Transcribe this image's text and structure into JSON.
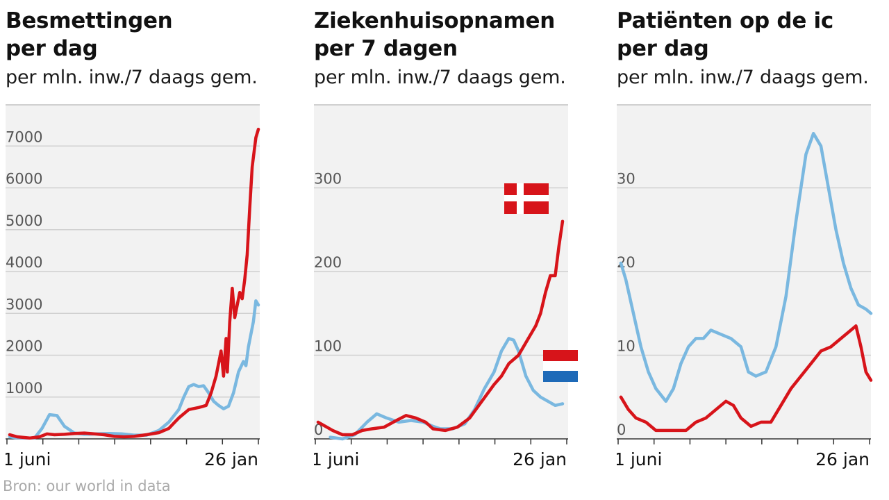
{
  "source": "Bron: our world in data",
  "colors": {
    "denmark": "#d7141a",
    "netherlands": "#7ab8e0",
    "plot_bg": "#f2f2f2",
    "grid": "#d0d0d0",
    "flag_blue": "#1e6ab8"
  },
  "chart_data": [
    {
      "type": "line",
      "title_line1": "Besmettingen",
      "title_line2": "per dag",
      "subtitle": "per mln. inw./7 daags gem.",
      "xlabel": "",
      "ylabel": "",
      "x_tick_labels": [
        "1 juni",
        "26 jan"
      ],
      "x_tick_count": 8,
      "ylim": [
        0,
        8000
      ],
      "y_ticks": [
        1000,
        2000,
        3000,
        4000,
        5000,
        6000,
        7000
      ],
      "grid": true,
      "series": [
        {
          "color_key": "netherlands",
          "points": [
            [
              0,
              50
            ],
            [
              0.02,
              30
            ],
            [
              0.05,
              20
            ],
            [
              0.1,
              20
            ],
            [
              0.13,
              250
            ],
            [
              0.16,
              580
            ],
            [
              0.19,
              560
            ],
            [
              0.22,
              300
            ],
            [
              0.26,
              140
            ],
            [
              0.3,
              110
            ],
            [
              0.35,
              120
            ],
            [
              0.4,
              130
            ],
            [
              0.45,
              120
            ],
            [
              0.5,
              90
            ],
            [
              0.55,
              90
            ],
            [
              0.6,
              200
            ],
            [
              0.64,
              400
            ],
            [
              0.68,
              700
            ],
            [
              0.7,
              1000
            ],
            [
              0.72,
              1250
            ],
            [
              0.74,
              1300
            ],
            [
              0.76,
              1250
            ],
            [
              0.78,
              1270
            ],
            [
              0.8,
              1100
            ],
            [
              0.82,
              900
            ],
            [
              0.84,
              800
            ],
            [
              0.86,
              720
            ],
            [
              0.88,
              780
            ],
            [
              0.9,
              1100
            ],
            [
              0.92,
              1600
            ],
            [
              0.94,
              1850
            ],
            [
              0.95,
              1750
            ],
            [
              0.96,
              2200
            ],
            [
              0.98,
              2800
            ],
            [
              0.99,
              3300
            ],
            [
              1,
              3200
            ]
          ]
        },
        {
          "color_key": "denmark",
          "points": [
            [
              0,
              100
            ],
            [
              0.03,
              50
            ],
            [
              0.08,
              20
            ],
            [
              0.12,
              50
            ],
            [
              0.15,
              120
            ],
            [
              0.18,
              100
            ],
            [
              0.22,
              110
            ],
            [
              0.26,
              130
            ],
            [
              0.3,
              140
            ],
            [
              0.34,
              120
            ],
            [
              0.38,
              100
            ],
            [
              0.42,
              60
            ],
            [
              0.46,
              50
            ],
            [
              0.5,
              60
            ],
            [
              0.55,
              100
            ],
            [
              0.6,
              150
            ],
            [
              0.64,
              250
            ],
            [
              0.68,
              500
            ],
            [
              0.72,
              700
            ],
            [
              0.76,
              750
            ],
            [
              0.79,
              800
            ],
            [
              0.81,
              1100
            ],
            [
              0.83,
              1500
            ],
            [
              0.84,
              1800
            ],
            [
              0.85,
              2100
            ],
            [
              0.86,
              1500
            ],
            [
              0.87,
              2400
            ],
            [
              0.875,
              1600
            ],
            [
              0.885,
              2800
            ],
            [
              0.895,
              3600
            ],
            [
              0.905,
              2900
            ],
            [
              0.915,
              3200
            ],
            [
              0.925,
              3500
            ],
            [
              0.935,
              3350
            ],
            [
              0.945,
              3800
            ],
            [
              0.955,
              4400
            ],
            [
              0.965,
              5500
            ],
            [
              0.975,
              6500
            ],
            [
              0.99,
              7200
            ],
            [
              1,
              7400
            ]
          ]
        }
      ]
    },
    {
      "type": "line",
      "title_line1": "Ziekenhuisopnamen",
      "title_line2": "per 7 dagen",
      "subtitle": "per mln. inw./7 daags gem.",
      "xlabel": "",
      "ylabel": "",
      "x_tick_labels": [
        "1 juni",
        "26 jan"
      ],
      "x_tick_count": 8,
      "ylim": [
        0,
        400
      ],
      "y_ticks": [
        0,
        100,
        200,
        300
      ],
      "grid": true,
      "flags": [
        "denmark",
        "netherlands"
      ],
      "series": [
        {
          "color_key": "netherlands",
          "points": [
            [
              0.05,
              2
            ],
            [
              0.1,
              0
            ],
            [
              0.15,
              5
            ],
            [
              0.2,
              20
            ],
            [
              0.24,
              30
            ],
            [
              0.28,
              25
            ],
            [
              0.33,
              20
            ],
            [
              0.38,
              22
            ],
            [
              0.43,
              20
            ],
            [
              0.47,
              15
            ],
            [
              0.5,
              12
            ],
            [
              0.55,
              12
            ],
            [
              0.6,
              18
            ],
            [
              0.64,
              35
            ],
            [
              0.68,
              60
            ],
            [
              0.72,
              80
            ],
            [
              0.75,
              105
            ],
            [
              0.78,
              120
            ],
            [
              0.8,
              118
            ],
            [
              0.82,
              105
            ],
            [
              0.85,
              75
            ],
            [
              0.88,
              58
            ],
            [
              0.91,
              50
            ],
            [
              0.94,
              45
            ],
            [
              0.97,
              40
            ],
            [
              1,
              42
            ]
          ]
        },
        {
          "color_key": "denmark",
          "points": [
            [
              0,
              20
            ],
            [
              0.03,
              15
            ],
            [
              0.06,
              10
            ],
            [
              0.1,
              5
            ],
            [
              0.14,
              5
            ],
            [
              0.18,
              10
            ],
            [
              0.22,
              12
            ],
            [
              0.27,
              14
            ],
            [
              0.32,
              22
            ],
            [
              0.36,
              28
            ],
            [
              0.4,
              25
            ],
            [
              0.44,
              20
            ],
            [
              0.47,
              12
            ],
            [
              0.52,
              10
            ],
            [
              0.57,
              14
            ],
            [
              0.62,
              25
            ],
            [
              0.67,
              45
            ],
            [
              0.72,
              65
            ],
            [
              0.75,
              75
            ],
            [
              0.78,
              90
            ],
            [
              0.82,
              100
            ],
            [
              0.86,
              120
            ],
            [
              0.89,
              135
            ],
            [
              0.91,
              150
            ],
            [
              0.93,
              175
            ],
            [
              0.95,
              195
            ],
            [
              0.97,
              195
            ],
            [
              0.985,
              230
            ],
            [
              1,
              260
            ]
          ]
        }
      ]
    },
    {
      "type": "line",
      "title_line1": "Patiënten op de ic",
      "title_line2": "per dag",
      "subtitle": "per mln. inw./7 daags gem.",
      "xlabel": "",
      "ylabel": "",
      "x_tick_labels": [
        "1 juni",
        "26 jan"
      ],
      "x_tick_count": 8,
      "ylim": [
        0,
        40
      ],
      "y_ticks": [
        0,
        10,
        20,
        30
      ],
      "grid": true,
      "series": [
        {
          "color_key": "netherlands",
          "points": [
            [
              0,
              21
            ],
            [
              0.02,
              19
            ],
            [
              0.05,
              15
            ],
            [
              0.08,
              11
            ],
            [
              0.11,
              8
            ],
            [
              0.14,
              6
            ],
            [
              0.18,
              4.5
            ],
            [
              0.21,
              6
            ],
            [
              0.24,
              9
            ],
            [
              0.27,
              11
            ],
            [
              0.3,
              12
            ],
            [
              0.33,
              12
            ],
            [
              0.36,
              13
            ],
            [
              0.4,
              12.5
            ],
            [
              0.44,
              12
            ],
            [
              0.48,
              11
            ],
            [
              0.51,
              8
            ],
            [
              0.54,
              7.5
            ],
            [
              0.58,
              8
            ],
            [
              0.62,
              11
            ],
            [
              0.66,
              17
            ],
            [
              0.7,
              26
            ],
            [
              0.74,
              34
            ],
            [
              0.77,
              36.5
            ],
            [
              0.8,
              35
            ],
            [
              0.83,
              30
            ],
            [
              0.86,
              25
            ],
            [
              0.89,
              21
            ],
            [
              0.92,
              18
            ],
            [
              0.95,
              16
            ],
            [
              0.98,
              15.5
            ],
            [
              1,
              15
            ]
          ]
        },
        {
          "color_key": "denmark",
          "points": [
            [
              0,
              5
            ],
            [
              0.03,
              3.5
            ],
            [
              0.06,
              2.5
            ],
            [
              0.1,
              2
            ],
            [
              0.14,
              1
            ],
            [
              0.18,
              1
            ],
            [
              0.22,
              1
            ],
            [
              0.26,
              1
            ],
            [
              0.3,
              2
            ],
            [
              0.34,
              2.5
            ],
            [
              0.38,
              3.5
            ],
            [
              0.42,
              4.5
            ],
            [
              0.45,
              4
            ],
            [
              0.48,
              2.5
            ],
            [
              0.52,
              1.5
            ],
            [
              0.56,
              2
            ],
            [
              0.6,
              2
            ],
            [
              0.64,
              4
            ],
            [
              0.68,
              6
            ],
            [
              0.72,
              7.5
            ],
            [
              0.76,
              9
            ],
            [
              0.8,
              10.5
            ],
            [
              0.84,
              11
            ],
            [
              0.88,
              12
            ],
            [
              0.92,
              13
            ],
            [
              0.94,
              13.5
            ],
            [
              0.96,
              11
            ],
            [
              0.98,
              8
            ],
            [
              1,
              7
            ]
          ]
        }
      ]
    }
  ]
}
